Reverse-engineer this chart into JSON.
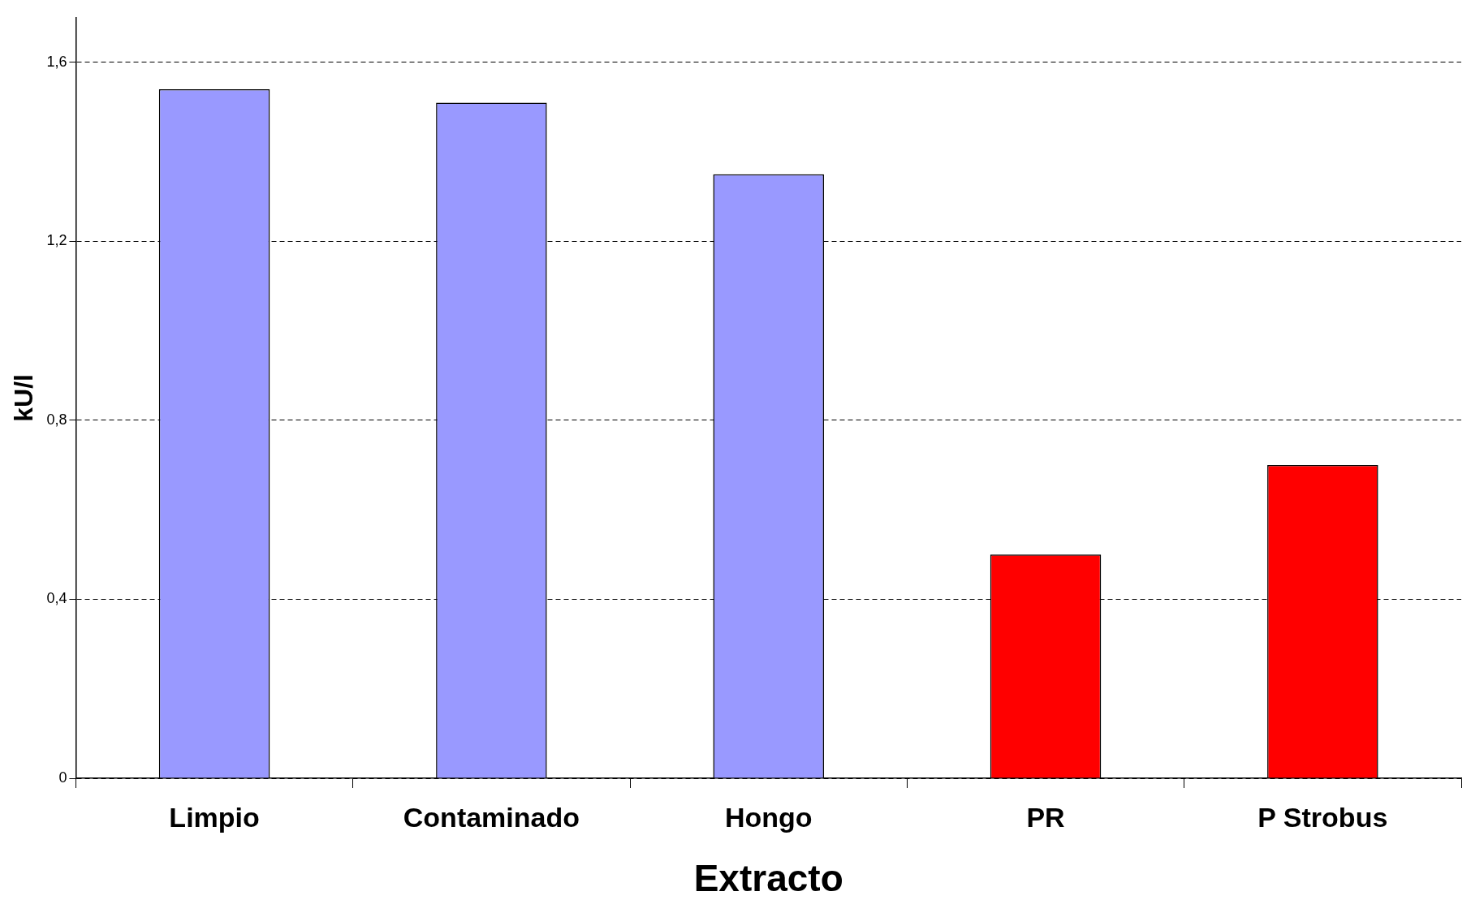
{
  "chart_data": {
    "type": "bar",
    "xlabel": "Extracto",
    "ylabel": "kU/l",
    "categories": [
      "Limpio",
      "Contaminado",
      "Hongo",
      "PR",
      "P Strobus"
    ],
    "values": [
      1.54,
      1.51,
      1.35,
      0.5,
      0.7
    ],
    "colors": [
      "#9999ff",
      "#9999ff",
      "#9999ff",
      "#ff0000",
      "#ff0000"
    ],
    "ylim": [
      0,
      1.7
    ],
    "yticks": [
      0,
      {
        "value": 0.4,
        "label": "0,4"
      },
      {
        "value": 0.8,
        "label": "0,8"
      },
      {
        "value": 1.2,
        "label": "1,2"
      },
      {
        "value": 1.6,
        "label": "1,6"
      }
    ],
    "grid": "y",
    "legend": false
  }
}
